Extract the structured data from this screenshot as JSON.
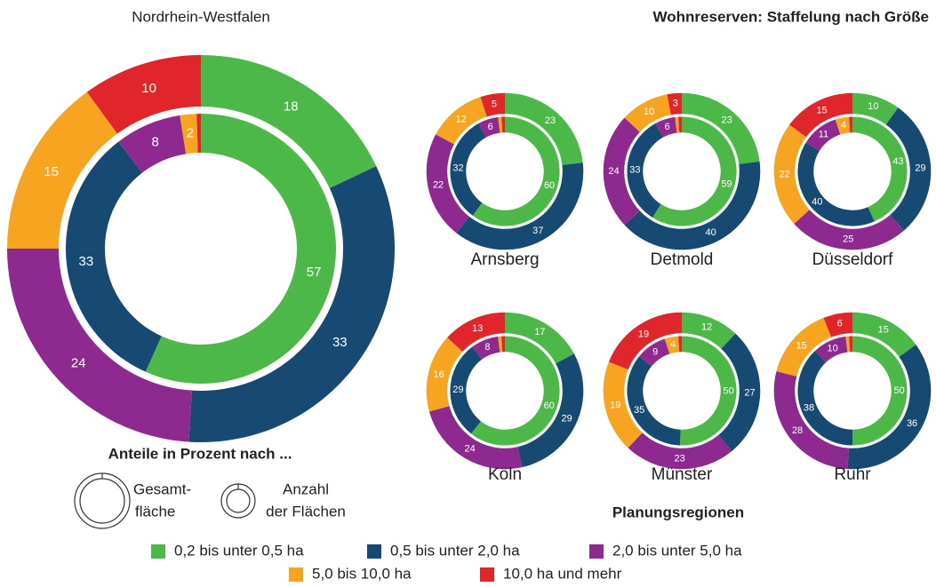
{
  "chart_data": {
    "type": "donut",
    "title": "Wohnreserven: Staffelung nach Größe",
    "regions_label": "Planungsregionen",
    "categories": [
      "0,2 bis unter 0,5 ha",
      "0,5 bis unter 2,0 ha",
      "2,0 bis unter 5,0 ha",
      "5,0 bis 10,0 ha",
      "10,0 ha und mehr"
    ],
    "colors": [
      "#4cb847",
      "#164a73",
      "#8e2a8f",
      "#f7a521",
      "#e0262b"
    ],
    "rings_note": {
      "title": "Anteile in Prozent nach ...",
      "outer": [
        "Gesamt-",
        "fläche"
      ],
      "inner": [
        "Anzahl",
        "der Flächen"
      ]
    },
    "charts": [
      {
        "name": "Nordrhein-Westfalen",
        "outer": [
          18,
          33,
          24,
          15,
          10
        ],
        "inner": [
          57,
          33,
          8,
          2,
          0.5
        ]
      },
      {
        "name": "Arnsberg",
        "outer": [
          23,
          37,
          22,
          12,
          5
        ],
        "inner": [
          60,
          32,
          6,
          1,
          1
        ]
      },
      {
        "name": "Detmold",
        "outer": [
          23,
          40,
          24,
          10,
          3
        ],
        "inner": [
          59,
          33,
          6,
          1,
          1
        ]
      },
      {
        "name": "Düsseldorf",
        "outer": [
          10,
          29,
          25,
          22,
          15
        ],
        "inner": [
          43,
          40,
          11,
          4,
          1
        ]
      },
      {
        "name": "Köln",
        "outer": [
          17,
          29,
          24,
          16,
          13
        ],
        "inner": [
          60,
          29,
          8,
          1,
          1
        ]
      },
      {
        "name": "Münster",
        "outer": [
          12,
          27,
          23,
          19,
          19
        ],
        "inner": [
          50,
          35,
          9,
          4,
          1
        ]
      },
      {
        "name": "Ruhr",
        "outer": [
          15,
          36,
          28,
          15,
          6
        ],
        "inner": [
          50,
          38,
          10,
          1,
          1
        ]
      }
    ]
  }
}
